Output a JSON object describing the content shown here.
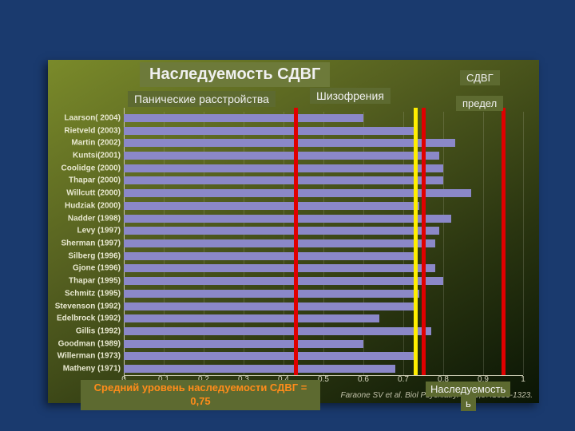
{
  "title": "Наследуемость СДВГ",
  "labels": {
    "panic": "Панические расстройства",
    "schizo": "Шизофрения",
    "adhd": "СДВГ",
    "limit": "предел",
    "axis": "Наследуемость",
    "axis_trail": "ь"
  },
  "caption": "Средний уровень наследуемости СДВГ = 0,75",
  "citation": "Faraone SV et al. Biol Psychiatry. 2005;57:1313-1323.",
  "chart": {
    "type": "bar-horizontal",
    "xlim": [
      0,
      1
    ],
    "xticks": [
      0,
      0.1,
      0.2,
      0.3,
      0.4,
      0.5,
      0.6,
      0.7,
      0.8,
      0.9,
      1
    ],
    "xtick_labels": [
      "0",
      "0.1",
      "0.2",
      "0.3",
      "0.4",
      "0.5",
      "0.6",
      "0.7",
      "0.8",
      "0.9",
      "1"
    ],
    "bar_color": "#8b88c8",
    "plot_bg_gradient": [
      "#7a8a2a",
      "#0a1505"
    ],
    "studies": [
      {
        "label": "Laarson( 2004)",
        "value": 0.6
      },
      {
        "label": "Rietveld (2003)",
        "value": 0.73
      },
      {
        "label": "Martin (2002)",
        "value": 0.83
      },
      {
        "label": "Kuntsi(2001)",
        "value": 0.79
      },
      {
        "label": "Coolidge (2000)",
        "value": 0.8
      },
      {
        "label": "Thapar (2000)",
        "value": 0.8
      },
      {
        "label": "Willcutt (2000)",
        "value": 0.87
      },
      {
        "label": "Hudziak (2000)",
        "value": 0.74
      },
      {
        "label": "Nadder (1998)",
        "value": 0.82
      },
      {
        "label": "Levy (1997)",
        "value": 0.79
      },
      {
        "label": "Sherman (1997)",
        "value": 0.78
      },
      {
        "label": "Silberg (1996)",
        "value": 0.73
      },
      {
        "label": "Gjone (1996)",
        "value": 0.78
      },
      {
        "label": "Thapar (1995)",
        "value": 0.8
      },
      {
        "label": "Schmitz (1995)",
        "value": 0.74
      },
      {
        "label": "Stevenson (1992)",
        "value": 0.73
      },
      {
        "label": "Edelbrock (1992)",
        "value": 0.64
      },
      {
        "label": "Gillis (1992)",
        "value": 0.77
      },
      {
        "label": "Goodman (1989)",
        "value": 0.6
      },
      {
        "label": "Willerman (1973)",
        "value": 0.73
      },
      {
        "label": "Matheny (1971)",
        "value": 0.68
      }
    ],
    "reference_lines": [
      {
        "value": 0.43,
        "color": "#e00000",
        "width": 5
      },
      {
        "value": 0.73,
        "color": "#ffee00",
        "width": 5
      },
      {
        "value": 0.75,
        "color": "#e00000",
        "width": 5
      },
      {
        "value": 0.95,
        "color": "#e00000",
        "width": 5
      }
    ]
  },
  "style": {
    "page_bg": "#1a3a6e",
    "title_bg": "#6d7a3a",
    "label_bg": "#5d6a30",
    "title_fontsize": 20,
    "label_fontsize_md": 14,
    "label_fontsize_sm": 12,
    "ylabel_fontsize": 10,
    "caption_color": "#ff8c1a"
  }
}
